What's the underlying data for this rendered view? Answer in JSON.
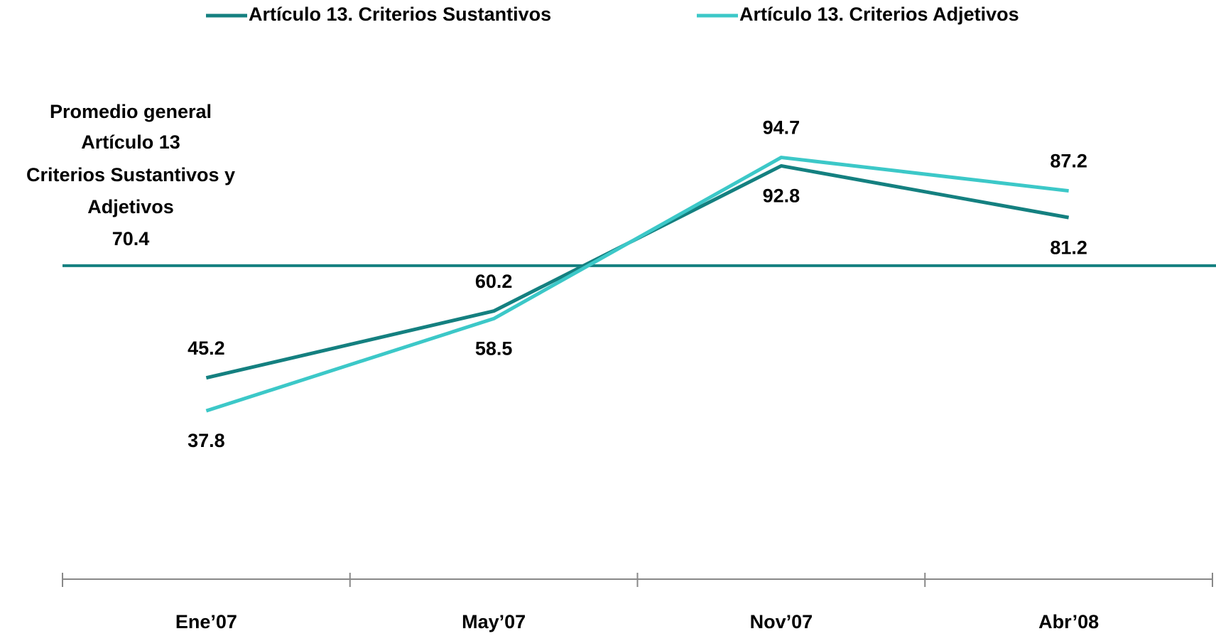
{
  "chart_data": {
    "type": "line",
    "categories": [
      "Ene’07",
      "May’07",
      "Nov’07",
      "Abr’08"
    ],
    "series": [
      {
        "name": "Artículo 13. Criterios Sustantivos",
        "color": "#148080",
        "values": [
          45.2,
          60.2,
          92.8,
          81.2
        ]
      },
      {
        "name": "Artículo 13. Criterios Adjetivos",
        "color": "#3cc8c8",
        "values": [
          37.8,
          58.5,
          94.7,
          87.2
        ]
      }
    ],
    "reference_line": {
      "label_lines": [
        "Promedio general",
        "Artículo 13",
        "Criterios Sustantivos y",
        "Adjetivos"
      ],
      "value": 70.4,
      "color": "#148080"
    },
    "ylim": [
      0,
      120
    ]
  }
}
